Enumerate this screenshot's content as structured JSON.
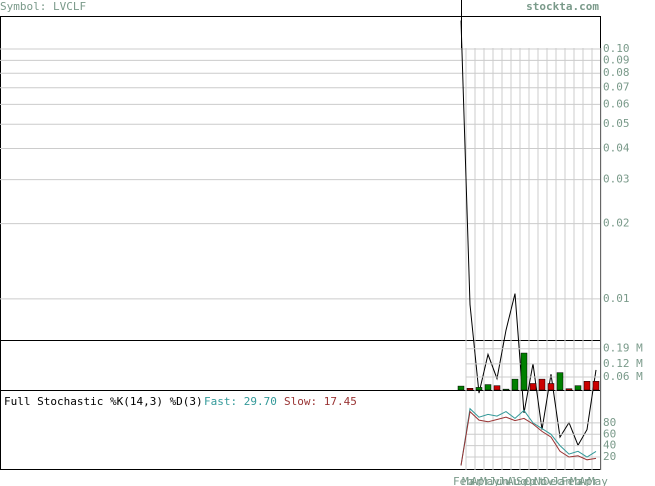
{
  "header": {
    "symbol": "Symbol: LVCLF",
    "site": "stockta.com"
  },
  "chart_data": [
    {
      "type": "line",
      "log_scale": true,
      "categories": [
        "Feb",
        "Mar",
        "Apr",
        "May",
        "Jun",
        "Jul",
        "Aug",
        "Sep",
        "Oct",
        "Nov",
        "Dec",
        "Jan",
        "Feb",
        "Mar",
        "Apr",
        "May"
      ],
      "series": [
        {
          "color": "#000000",
          "values": [
            0.13,
            0.0095,
            0.0042,
            0.006,
            0.0048,
            0.0075,
            0.0105,
            0.0035,
            0.0055,
            0.003,
            0.005,
            0.0028,
            0.0032,
            0.0026,
            0.003,
            0.0052
          ]
        }
      ],
      "ylim": [
        0.00685,
        0.1355
      ],
      "yticks": [
        {
          "value": 0.1,
          "label": "0.10"
        },
        0.09,
        0.08,
        0.07,
        0.06,
        0.05,
        0.04,
        0.03,
        0.02,
        0.01
      ],
      "grid": true
    },
    {
      "type": "bar",
      "values": [
        0.018,
        0.008,
        0.012,
        0.025,
        0.02,
        0.004,
        0.05,
        0.17,
        0.03,
        0.05,
        0.03,
        0.08,
        0.006,
        0.02,
        0.04,
        0.04
      ],
      "bar_colors": [
        "#008000",
        "#cc0000",
        "#008000",
        "#008000",
        "#cc0000",
        "#008000",
        "#008000",
        "#008000",
        "#cc0000",
        "#cc0000",
        "#cc0000",
        "#008000",
        "#cc0000",
        "#008000",
        "#cc0000",
        "#cc0000"
      ],
      "ylim": [
        0,
        0.23
      ],
      "yticks": [
        {
          "value": 0.19,
          "label": "0.19 M"
        },
        {
          "value": 0.12,
          "label": "0.12 M"
        },
        {
          "value": 0.06,
          "label": "0.06 M"
        }
      ],
      "grid": true
    },
    {
      "type": "line",
      "title": "Full Stochastic %K(14,3) %D(3)",
      "fast_label": "Fast: 29.70",
      "slow_label": "Slow: 17.45",
      "series": [
        {
          "color": "#339999",
          "values": [
            5,
            105,
            90,
            95,
            92,
            100,
            88,
            102,
            80,
            70,
            60,
            40,
            25,
            30,
            20,
            29.7
          ]
        },
        {
          "color": "#993333",
          "values": [
            5,
            100,
            85,
            82,
            86,
            90,
            84,
            88,
            78,
            65,
            55,
            30,
            20,
            22,
            15,
            17.45
          ]
        }
      ],
      "ylim": [
        -3,
        138
      ],
      "yticks": [
        80,
        60,
        40,
        20
      ],
      "grid": true
    }
  ]
}
